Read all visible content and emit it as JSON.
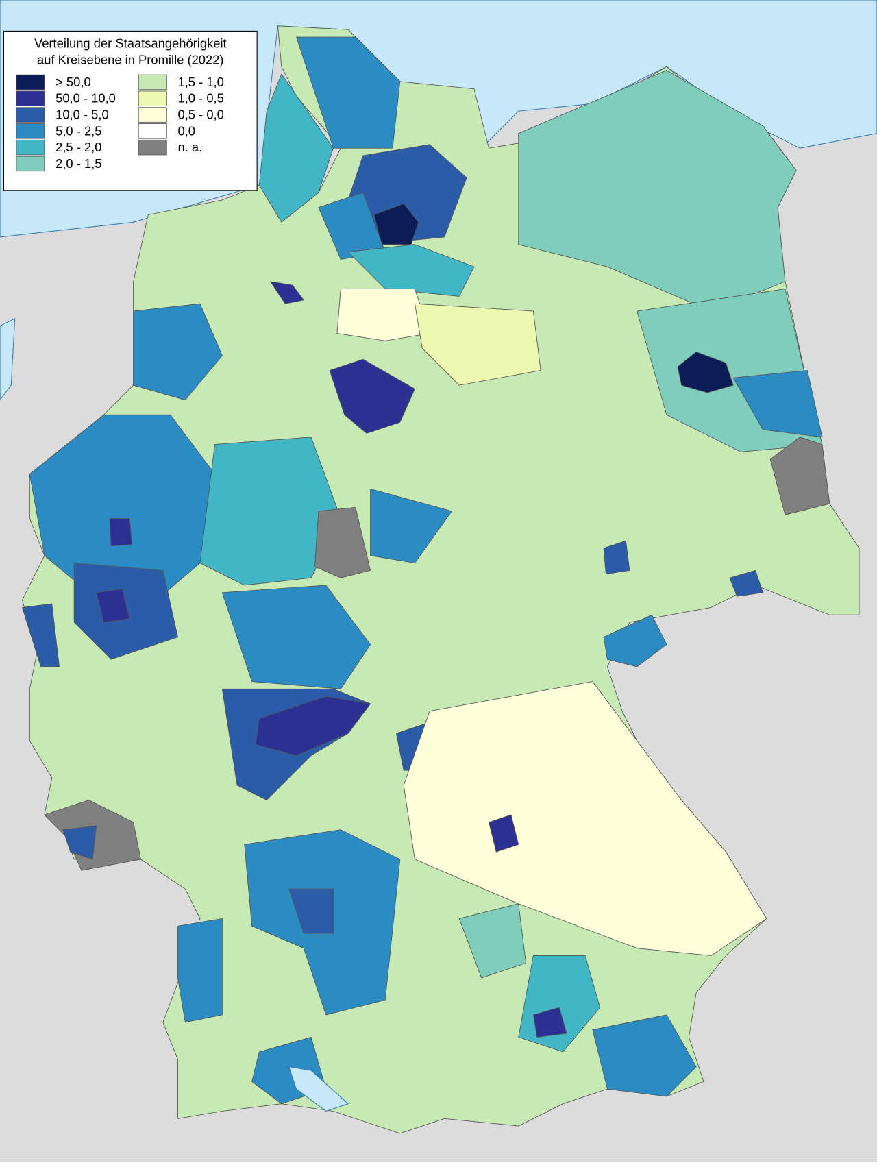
{
  "legend": {
    "title_lines": [
      "Verteilung der Staatsangehörigkeit",
      "auf Kreisebene in Promille (2022)"
    ],
    "items": [
      {
        "label": "> 50,0",
        "color": "#0b1c57"
      },
      {
        "label": "50,0 - 10,0",
        "color": "#2a3192"
      },
      {
        "label": "10,0 - 5,0",
        "color": "#2b5ca8"
      },
      {
        "label": "5,0 - 2,5",
        "color": "#2b8cc4"
      },
      {
        "label": "2,5 - 2,0",
        "color": "#41b6c4"
      },
      {
        "label": "2,0 - 1,5",
        "color": "#7fcdbb"
      },
      {
        "label": "1,5 - 1,0",
        "color": "#c7e9b4"
      },
      {
        "label": "1,0 - 0,5",
        "color": "#edf8b1"
      },
      {
        "label": "0,5 - 0,0",
        "color": "#ffffd9"
      },
      {
        "label": "0,0",
        "color": "#ffffff"
      },
      {
        "label": "n. a.",
        "color": "#808080"
      }
    ]
  }
}
